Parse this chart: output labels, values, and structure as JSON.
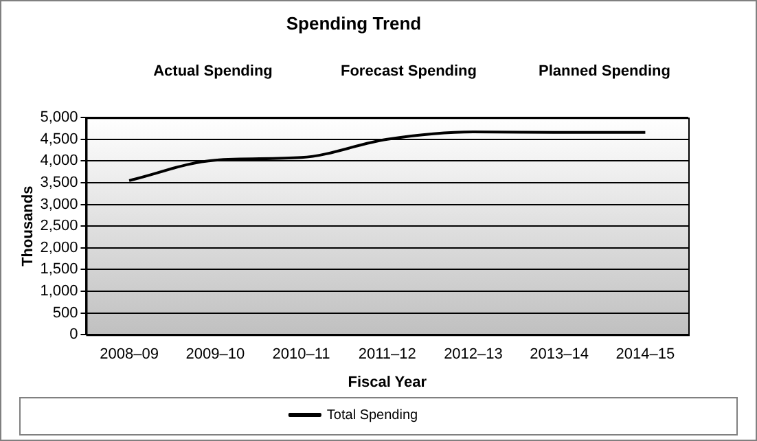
{
  "chart_data": {
    "type": "line",
    "title": "Spending Trend",
    "xlabel": "Fiscal Year",
    "ylabel": "Thousands",
    "annotations": [
      "Actual Spending",
      "Forecast Spending",
      "Planned Spending"
    ],
    "categories": [
      "2008–09",
      "2009–10",
      "2010–11",
      "2011–12",
      "2012–13",
      "2013–14",
      "2014–15"
    ],
    "series": [
      {
        "name": "Total Spending",
        "color": "#000000",
        "values": [
          3550,
          4020,
          4080,
          4500,
          4670,
          4660,
          4660
        ]
      }
    ],
    "ylim": [
      0,
      5000
    ],
    "yticks": [
      0,
      500,
      {
        "value": 1000,
        "label": "1,000"
      },
      {
        "value": 1500,
        "label": "1,500"
      },
      {
        "value": 2000,
        "label": "2,000"
      },
      {
        "value": 2500,
        "label": "2,500"
      },
      {
        "value": 3000,
        "label": "3,000"
      },
      {
        "value": 3500,
        "label": "3,500"
      },
      {
        "value": 4000,
        "label": "4,000"
      },
      {
        "value": 4500,
        "label": "4,500"
      },
      {
        "value": 5000,
        "label": "5,000"
      }
    ],
    "grid": "y",
    "legend": "bottom",
    "marker": "none",
    "line_style": "solid"
  }
}
